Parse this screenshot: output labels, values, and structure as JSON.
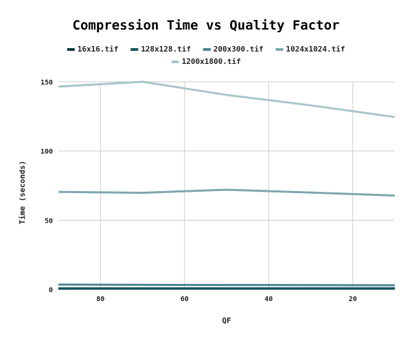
{
  "chart_data": {
    "type": "line",
    "title": "Compression Time vs Quality Factor",
    "xlabel": "QF",
    "ylabel": "Time (seconds)",
    "x": [
      90,
      70,
      50,
      30,
      10
    ],
    "xlim": [
      90,
      10
    ],
    "x_reversed": true,
    "xticks": [
      80,
      60,
      40,
      20
    ],
    "ylim": [
      0,
      150
    ],
    "yticks": [
      0,
      50,
      100,
      150
    ],
    "grid": true,
    "legend_position": "top",
    "series": [
      {
        "name": "16x16.tif",
        "color": "#0d3b3b",
        "values": [
          0.5,
          0.5,
          0.5,
          0.5,
          0.5
        ]
      },
      {
        "name": "128x128.tif",
        "color": "#1b5563",
        "values": [
          0.8,
          0.8,
          0.8,
          0.8,
          0.8
        ]
      },
      {
        "name": "200x300.tif",
        "color": "#4a8690",
        "values": [
          3.5,
          3.3,
          3.2,
          3.1,
          3.0
        ]
      },
      {
        "name": "1024x1024.tif",
        "color": "#7ea7ad",
        "values": [
          70.5,
          69.8,
          72.0,
          70.0,
          67.8
        ]
      },
      {
        "name": "1200x1800.tif",
        "color": "#a9c6ca",
        "values": [
          146.5,
          150.0,
          140.5,
          133.0,
          124.5
        ]
      }
    ]
  }
}
